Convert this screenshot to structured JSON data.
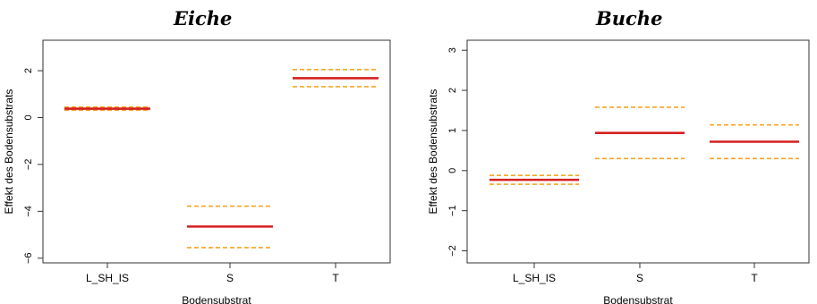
{
  "chart_data": [
    {
      "type": "line",
      "title": "Eiche",
      "xlabel": "Bodensubstrat",
      "ylabel": "Effekt des Bodensubstrats",
      "categories": [
        "L_SH_IS",
        "S",
        "T"
      ],
      "yticks": [
        -6,
        -4,
        -2,
        0,
        2
      ],
      "ylim": [
        -6.2,
        3.3
      ],
      "series": [
        {
          "values": [
            0.38,
            -4.65,
            1.68
          ],
          "color": "#d61f1f",
          "style": "solid"
        },
        {
          "values": [
            0.45,
            -3.78,
            2.05
          ],
          "color": "#f5a623",
          "style": "dashed"
        },
        {
          "values": [
            0.31,
            -5.55,
            1.32
          ],
          "color": "#f5a623",
          "style": "dashed"
        }
      ],
      "grid": false
    },
    {
      "type": "line",
      "title": "Buche",
      "xlabel": "Bodensubstrat",
      "ylabel": "Effekt des Bodensubstrats",
      "categories": [
        "L_SH_IS",
        "S",
        "T"
      ],
      "yticks": [
        -2,
        -1,
        0,
        1,
        2,
        3
      ],
      "ylim": [
        -2.3,
        3.25
      ],
      "series": [
        {
          "values": [
            -0.23,
            0.94,
            0.72
          ],
          "color": "#d61f1f",
          "style": "solid"
        },
        {
          "values": [
            -0.12,
            1.58,
            1.14
          ],
          "color": "#f5a623",
          "style": "dashed"
        },
        {
          "values": [
            -0.34,
            0.3,
            0.3
          ],
          "color": "#f5a623",
          "style": "dashed"
        }
      ],
      "grid": false
    }
  ]
}
